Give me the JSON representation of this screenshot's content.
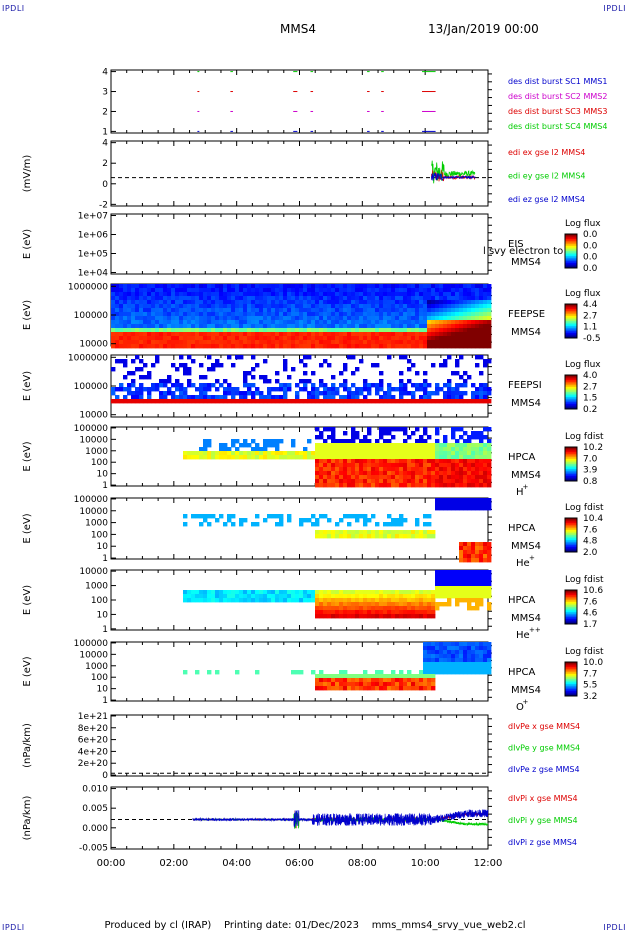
{
  "header": {
    "corner_tl": "IPDLI",
    "corner_tr": "IPDLI",
    "corner_bl": "IPDLI",
    "corner_br": "IPDLI",
    "spacecraft": "MMS4",
    "date": "13/Jan/2019 00:00"
  },
  "footer": {
    "text": "Produced by cl (IRAP)    Printing date: 01/Dec/2023    mms_mms4_srvy_vue_web2.cl"
  },
  "colors": {
    "red": "#dd0000",
    "green": "#00cc00",
    "blue": "#0000cc",
    "magenta": "#cc00cc",
    "frame": "#000000"
  },
  "chart_data": [
    {
      "type": "scatter",
      "ylabel": "",
      "yticks": [
        "1",
        "2",
        "3",
        "4"
      ],
      "ylim": [
        0.5,
        4.5
      ],
      "legend": [
        {
          "name": "des dist burst SC1 MMS1",
          "color": "#0000cc"
        },
        {
          "name": "des dist burst SC2 MMS2",
          "color": "#cc00cc"
        },
        {
          "name": "des dist burst SC3 MMS3",
          "color": "#dd0000"
        },
        {
          "name": "des dist burst SC4 MMS4",
          "color": "#00cc00"
        }
      ],
      "intervals_hours": [
        [
          2.75,
          2.78
        ],
        [
          3.8,
          3.85
        ],
        [
          5.8,
          5.9
        ],
        [
          6.35,
          6.4
        ],
        [
          8.15,
          8.2
        ],
        [
          8.6,
          8.65
        ],
        [
          9.9,
          10.3
        ]
      ]
    },
    {
      "type": "line",
      "ylabel": "(mV/m)",
      "yticks": [
        "-2",
        "0",
        "2",
        "4"
      ],
      "ylim": [
        -3.5,
        4.5
      ],
      "legend": [
        {
          "name": "edi ex gse l2 MMS4",
          "color": "#dd0000"
        },
        {
          "name": "edi ey gse l2 MMS4",
          "color": "#00cc00"
        },
        {
          "name": "edi ez gse l2 MMS4",
          "color": "#0000cc"
        }
      ],
      "data_start_hour": 10.2,
      "data_end_hour": 11.6
    },
    {
      "type": "heatmap",
      "ylabel": "E (eV)",
      "yticks": [
        "1e+04",
        "1e+05",
        "1e+06",
        "1e+07"
      ],
      "side_label": "EIS",
      "side_sc": "MMS4",
      "overlay_text": "l svy electron to",
      "colorbar_title": "Log flux",
      "colorbar_ticks": [
        "0.0",
        "0.0",
        "0.0",
        "0.0"
      ]
    },
    {
      "type": "heatmap",
      "ylabel": "E (eV)",
      "yticks": [
        "10000",
        "100000",
        "1000000"
      ],
      "side_label": "FEEPSE",
      "side_sc": "MMS4",
      "colorbar_title": "Log flux",
      "colorbar_ticks": [
        "4.4",
        "2.7",
        "1.1",
        "-0.5"
      ]
    },
    {
      "type": "heatmap",
      "ylabel": "E (eV)",
      "yticks": [
        "10000",
        "100000",
        "1000000"
      ],
      "side_label": "FEEPSI",
      "side_sc": "MMS4",
      "colorbar_title": "Log flux",
      "colorbar_ticks": [
        "4.0",
        "2.7",
        "1.5",
        "0.2"
      ]
    },
    {
      "type": "heatmap",
      "ylabel": "E (eV)",
      "yticks": [
        "1",
        "10",
        "100",
        "1000",
        "10000",
        "100000"
      ],
      "side_label": "HPCA",
      "side_sc": "MMS4",
      "species": "H+",
      "colorbar_title": "Log fdist",
      "colorbar_ticks": [
        "10.2",
        "7.0",
        "3.9",
        "0.8"
      ]
    },
    {
      "type": "heatmap",
      "ylabel": "E (eV)",
      "yticks": [
        "1",
        "10",
        "100",
        "1000",
        "10000",
        "100000"
      ],
      "side_label": "HPCA",
      "side_sc": "MMS4",
      "species": "He+",
      "colorbar_title": "Log fdist",
      "colorbar_ticks": [
        "10.4",
        "7.6",
        "4.8",
        "2.0"
      ]
    },
    {
      "type": "heatmap",
      "ylabel": "E (eV)",
      "yticks": [
        "1",
        "10",
        "100",
        "1000",
        "10000"
      ],
      "side_label": "HPCA",
      "side_sc": "MMS4",
      "species": "He++",
      "colorbar_title": "Log fdist",
      "colorbar_ticks": [
        "10.6",
        "7.6",
        "4.6",
        "1.7"
      ]
    },
    {
      "type": "heatmap",
      "ylabel": "E (eV)",
      "yticks": [
        "1",
        "10",
        "100",
        "1000",
        "10000",
        "100000"
      ],
      "side_label": "HPCA",
      "side_sc": "MMS4",
      "species": "O+",
      "colorbar_title": "Log fdist",
      "colorbar_ticks": [
        "10.0",
        "7.7",
        "5.5",
        "3.2"
      ]
    },
    {
      "type": "line",
      "ylabel": "(nPa/km)",
      "yticks": [
        "0",
        "2e+20",
        "4e+20",
        "6e+20",
        "8e+20",
        "1e+21"
      ],
      "ylim": [
        -5e+19,
        1.05e+21
      ],
      "legend": [
        {
          "name": "dIvPe x gse MMS4",
          "color": "#dd0000"
        },
        {
          "name": "dIvPe y gse MMS4",
          "color": "#00cc00"
        },
        {
          "name": "dIvPe z gse MMS4",
          "color": "#0000cc"
        }
      ]
    },
    {
      "type": "line",
      "ylabel": "(nPa/km)",
      "yticks": [
        "-0.005",
        "0.000",
        "0.005",
        "0.010"
      ],
      "ylim": [
        -0.0095,
        0.0105
      ],
      "legend": [
        {
          "name": "dIvPi x gse MMS4",
          "color": "#dd0000"
        },
        {
          "name": "dIvPi y gse MMS4",
          "color": "#00cc00"
        },
        {
          "name": "dIvPi z gse MMS4",
          "color": "#0000cc"
        }
      ]
    }
  ],
  "x_axis": {
    "ticks": [
      "00:00",
      "02:00",
      "04:00",
      "06:00",
      "08:00",
      "10:00",
      "12:00"
    ],
    "range_hours": [
      0,
      12
    ]
  }
}
